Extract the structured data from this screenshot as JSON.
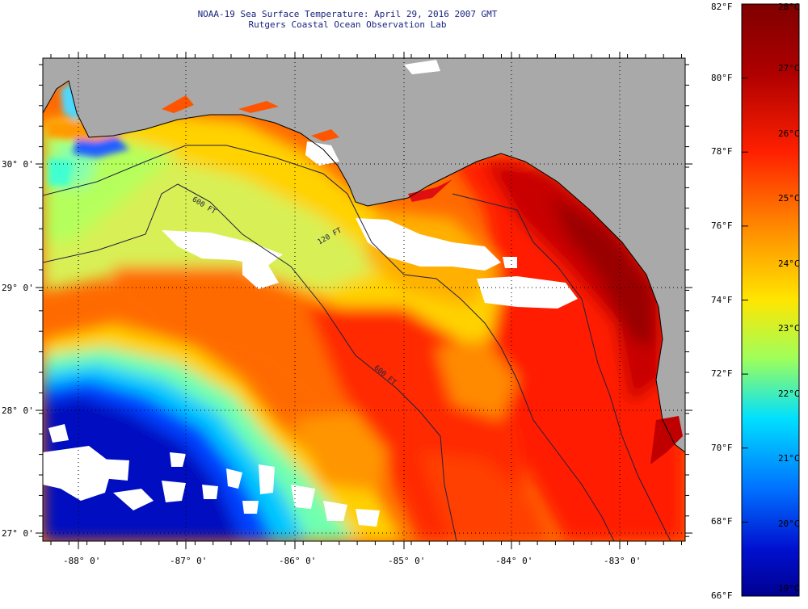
{
  "title_line1": "NOAA-19 Sea Surface Temperature:  April 29, 2016 2007 GMT",
  "title_line2": "Rutgers Coastal Ocean Observation Lab",
  "lat_labels": [
    "30° 0'",
    "29° 0'",
    "28° 0'",
    "27° 0'"
  ],
  "lon_labels": [
    "-88° 0'",
    "-87° 0'",
    "-86° 0'",
    "-85° 0'",
    "-84° 0'",
    "-83° 0'"
  ],
  "contour_labels": [
    "600 FT",
    "120 FT",
    "600 FT"
  ],
  "colorbar": {
    "fahrenheit_labels": [
      "82°F",
      "80°F",
      "78°F",
      "76°F",
      "74°F",
      "72°F",
      "70°F",
      "68°F",
      "66°F"
    ],
    "celsius_labels": [
      "28°C",
      "27°C",
      "26°C",
      "25°C",
      "24°C",
      "23°C",
      "22°C",
      "21°C",
      "20°C",
      "19°C"
    ]
  },
  "colors": {
    "land": "#a9a9a9",
    "cloud": "#ffffff",
    "title": "#1a237e"
  }
}
